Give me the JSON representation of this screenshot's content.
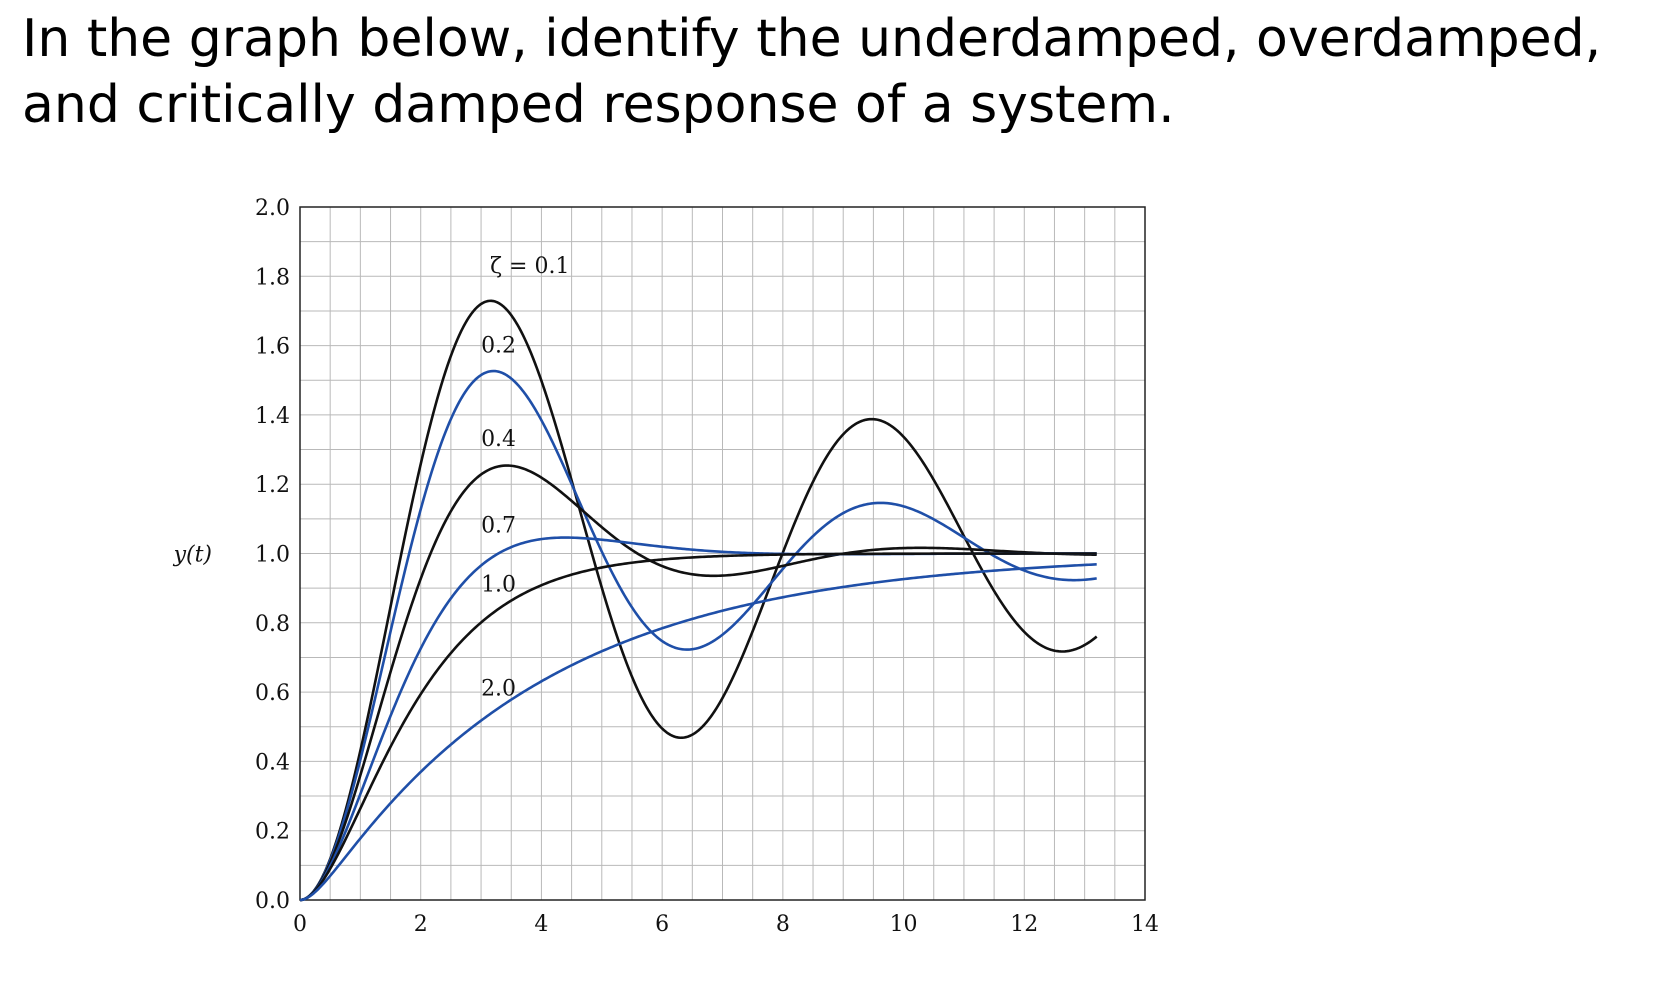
{
  "question": "In the graph below, identify the underdamped, overdamped, and critically damped response of a system.",
  "chart_data": {
    "type": "line",
    "title": "",
    "xlabel": "",
    "ylabel": "y(t)",
    "xlim": [
      0,
      14
    ],
    "ylim": [
      0,
      2.0
    ],
    "grid": true,
    "x_major_ticks": [
      0,
      2,
      4,
      6,
      8,
      10,
      12,
      14
    ],
    "x_tick_labels": [
      "0",
      "2",
      "4",
      "6",
      "8",
      "10",
      "12",
      "14"
    ],
    "y_major_ticks": [
      0.0,
      0.2,
      0.4,
      0.6,
      0.8,
      1.0,
      1.2,
      1.4,
      1.6,
      1.8,
      2.0
    ],
    "y_tick_labels": [
      "0.0",
      "0.2",
      "0.4",
      "0.6",
      "0.8",
      "1.0",
      "1.2",
      "1.4",
      "1.6",
      "1.8",
      "2.0"
    ],
    "x_minor_step": 0.5,
    "y_minor_step": 0.1,
    "x_range_plotted": [
      0,
      13.2
    ],
    "colors": {
      "black_curve": "#111111",
      "blue_curve": "#1f4fa8",
      "grid": "#b9b9b9"
    },
    "series": [
      {
        "name": "ζ = 0.1",
        "zeta": 0.1,
        "color": "black_curve",
        "label_t": 3.15,
        "label_y": 1.81
      },
      {
        "name": "0.2",
        "zeta": 0.2,
        "color": "blue_curve",
        "label_t": 3.0,
        "label_y": 1.58
      },
      {
        "name": "0.4",
        "zeta": 0.4,
        "color": "black_curve",
        "label_t": 3.0,
        "label_y": 1.31
      },
      {
        "name": "0.7",
        "zeta": 0.7,
        "color": "blue_curve",
        "label_t": 3.0,
        "label_y": 1.06
      },
      {
        "name": "1.0",
        "zeta": 1.0,
        "color": "black_curve",
        "label_t": 3.0,
        "label_y": 0.89
      },
      {
        "name": "2.0",
        "zeta": 2.0,
        "color": "blue_curve",
        "label_t": 3.0,
        "label_y": 0.59
      }
    ],
    "omega_n": 1.0
  }
}
